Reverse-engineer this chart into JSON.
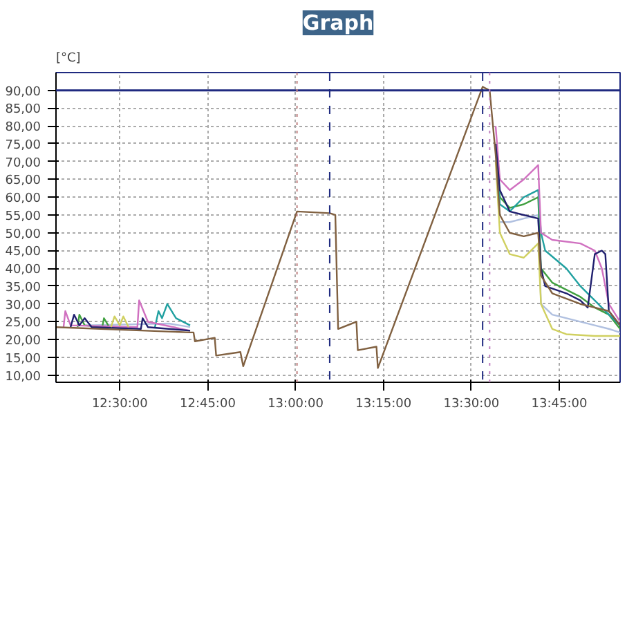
{
  "chart_data": {
    "type": "line",
    "title": "Graph",
    "ylabel": "[°C]",
    "xlim": [
      12.3185,
      13.923
    ],
    "ylim": [
      8,
      95
    ],
    "xticks": [
      {
        "value": 12.5,
        "label": "12:30:00"
      },
      {
        "value": 12.75,
        "label": "12:45:00"
      },
      {
        "value": 13.0,
        "label": "13:00:00"
      },
      {
        "value": 13.25,
        "label": "13:15:00"
      },
      {
        "value": 13.5,
        "label": "13:30:00"
      },
      {
        "value": 13.75,
        "label": "13:45:00"
      }
    ],
    "yticks": [
      {
        "value": 10,
        "label": "10,00"
      },
      {
        "value": 15,
        "label": "15,00"
      },
      {
        "value": 20,
        "label": "20,00"
      },
      {
        "value": 25,
        "label": "25,00"
      },
      {
        "value": 30,
        "label": "30,00"
      },
      {
        "value": 35,
        "label": "35,00"
      },
      {
        "value": 40,
        "label": "40,00"
      },
      {
        "value": 45,
        "label": "45,00"
      },
      {
        "value": 50,
        "label": "50,00"
      },
      {
        "value": 55,
        "label": "55,00"
      },
      {
        "value": 60,
        "label": "60,00"
      },
      {
        "value": 65,
        "label": "65,00"
      },
      {
        "value": 70,
        "label": "70,00"
      },
      {
        "value": 75,
        "label": "75,00"
      },
      {
        "value": 80,
        "label": "80,00"
      },
      {
        "value": 85,
        "label": "85,00"
      },
      {
        "value": 90,
        "label": "90,00"
      }
    ],
    "grid": true,
    "line_style": "solid",
    "ref_lines": [
      {
        "axis": "y",
        "value": 90,
        "color": "#1f2a80",
        "line_style": "solid"
      },
      {
        "axis": "x",
        "value": 13.004,
        "color": "#c08080",
        "line_style": "dotted"
      },
      {
        "axis": "x",
        "value": 13.097,
        "color": "#1f2a80",
        "line_style": "dashed"
      },
      {
        "axis": "x",
        "value": 13.532,
        "color": "#1f2a80",
        "line_style": "dashed"
      },
      {
        "axis": "x",
        "value": 13.552,
        "color": "#c080c0",
        "line_style": "dotted"
      }
    ],
    "series": [
      {
        "color": "#b0c0e0",
        "x": [
          12.4,
          12.64,
          12.7,
          13.0,
          13.581,
          13.609,
          13.649,
          13.69,
          13.698,
          13.73,
          13.81,
          13.851,
          13.891,
          13.923
        ],
        "values": [
          24,
          24.5,
          23.5,
          null,
          53,
          53,
          54,
          55,
          30,
          27,
          25,
          24,
          23,
          22
        ]
      },
      {
        "color": "#40a040",
        "x": [
          12.38,
          12.385,
          12.4,
          12.45,
          12.455,
          12.47,
          13.0,
          13.569,
          13.581,
          13.609,
          13.649,
          13.69,
          13.698,
          13.73,
          13.81,
          13.851,
          13.891,
          13.923
        ],
        "values": [
          23.5,
          27,
          24,
          23.5,
          26,
          23.5,
          null,
          75,
          60,
          57,
          58,
          60,
          40,
          36,
          32,
          29,
          27,
          23
        ]
      },
      {
        "color": "#20a0a0",
        "x": [
          12.6,
          12.61,
          12.62,
          12.635,
          12.66,
          12.7,
          13.0,
          13.569,
          13.581,
          13.609,
          13.649,
          13.69,
          13.698,
          13.71,
          13.77,
          13.81,
          13.851,
          13.891,
          13.923
        ],
        "values": [
          23.5,
          28,
          26,
          30,
          26,
          24,
          null,
          75,
          58,
          56,
          60,
          62,
          50,
          45,
          40,
          35,
          31,
          27,
          24
        ]
      },
      {
        "color": "#d070c0",
        "x": [
          12.34,
          12.345,
          12.36,
          12.55,
          12.555,
          12.58,
          12.7,
          13.0,
          13.569,
          13.581,
          13.609,
          13.649,
          13.69,
          13.698,
          13.73,
          13.81,
          13.851,
          13.871,
          13.891,
          13.923
        ],
        "values": [
          23.5,
          28,
          24,
          23.5,
          31,
          25,
          22.5,
          null,
          80,
          65,
          62,
          65,
          69,
          50,
          48,
          47,
          45,
          40,
          30,
          25
        ]
      },
      {
        "color": "#1f1f6e",
        "x": [
          12.36,
          12.37,
          12.385,
          12.4,
          12.42,
          12.56,
          12.565,
          12.58,
          12.7,
          13.0,
          13.569,
          13.581,
          13.609,
          13.649,
          13.69,
          13.698,
          13.71,
          13.77,
          13.81,
          13.831,
          13.851,
          13.871,
          13.881,
          13.891,
          13.923
        ],
        "values": [
          23.5,
          27,
          24,
          26,
          23.5,
          23,
          26,
          23.5,
          22.5,
          null,
          75,
          62,
          56,
          55,
          54,
          40,
          35,
          33,
          31,
          29,
          44,
          45,
          44,
          28,
          24
        ]
      },
      {
        "color": "#d0d060",
        "x": [
          12.475,
          12.485,
          12.5,
          12.51,
          12.525,
          13.0,
          13.569,
          13.581,
          13.609,
          13.649,
          13.69,
          13.698,
          13.73,
          13.77,
          13.851,
          13.923
        ],
        "values": [
          23.5,
          26.5,
          24,
          26.5,
          23.5,
          null,
          70,
          50,
          44,
          43,
          47,
          30,
          23,
          21.5,
          21,
          21
        ]
      },
      {
        "color": "#806040",
        "x": [
          12.3185,
          12.7,
          12.7097,
          12.7137,
          12.77,
          12.774,
          12.843,
          12.851,
          13.004,
          13.097,
          13.113,
          13.121,
          13.173,
          13.177,
          13.23,
          13.234,
          13.532,
          13.552,
          13.569,
          13.581,
          13.609,
          13.649,
          13.69,
          13.698,
          13.73,
          13.81,
          13.851,
          13.891,
          13.923
        ],
        "values": [
          23.5,
          22,
          22,
          19.5,
          20.5,
          15.5,
          16.5,
          12.5,
          56,
          55.5,
          55,
          23,
          25,
          17,
          18,
          12,
          91,
          90,
          72,
          55,
          50,
          49,
          50,
          38,
          33,
          30,
          29,
          28,
          24
        ]
      }
    ]
  }
}
